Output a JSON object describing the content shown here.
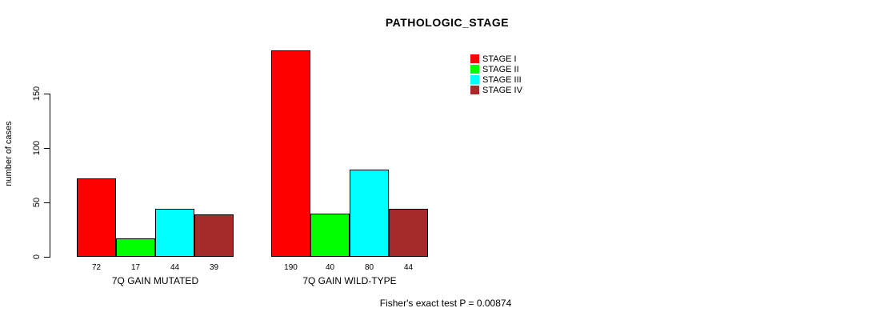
{
  "chart_data": {
    "type": "bar",
    "title": "PATHOLOGIC_STAGE",
    "ylabel": "number of cases",
    "xlabel": "",
    "yticks": [
      0,
      50,
      100,
      150
    ],
    "ylim": [
      0,
      190
    ],
    "grid": false,
    "legend_position": "top-right",
    "categories": [
      "7Q GAIN MUTATED",
      "7Q GAIN WILD-TYPE"
    ],
    "series": [
      {
        "name": "STAGE I",
        "color": "#FF0000",
        "values": [
          72,
          190
        ]
      },
      {
        "name": "STAGE II",
        "color": "#00FF00",
        "values": [
          17,
          40
        ]
      },
      {
        "name": "STAGE III",
        "color": "#00FFFF",
        "values": [
          44,
          80
        ]
      },
      {
        "name": "STAGE IV",
        "color": "#A52A2A",
        "values": [
          39,
          44
        ]
      }
    ],
    "bar_value_labels": true,
    "annotation": "Fisher's exact test P = 0.00874"
  }
}
